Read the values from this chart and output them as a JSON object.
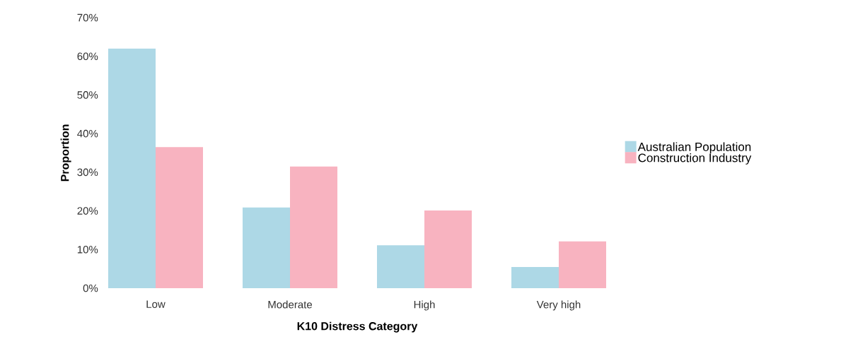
{
  "chart_data": {
    "type": "bar",
    "xlabel": "K10 Distress Category",
    "ylabel": "Proportion",
    "categories": [
      "Low",
      "Moderate",
      "High",
      "Very high"
    ],
    "series": [
      {
        "name": "Australian Population",
        "color": "#add8e6",
        "values": [
          62,
          20.9,
          11.1,
          5.5
        ]
      },
      {
        "name": "Construction Industry",
        "color": "#f8b3c0",
        "values": [
          36.5,
          31.5,
          20.1,
          12.1
        ]
      }
    ],
    "ylim": [
      0,
      70
    ],
    "yticks": [
      {
        "value": 0,
        "label": "0%"
      },
      {
        "value": 10,
        "label": "10%"
      },
      {
        "value": 20,
        "label": "20%"
      },
      {
        "value": 30,
        "label": "30%"
      },
      {
        "value": 40,
        "label": "40%"
      },
      {
        "value": 50,
        "label": "50%"
      },
      {
        "value": 60,
        "label": "60%"
      },
      {
        "value": 70,
        "label": "70%"
      }
    ],
    "grid": false,
    "legend": "right"
  }
}
